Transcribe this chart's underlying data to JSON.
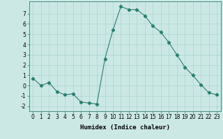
{
  "xlabel": "Humidex (Indice chaleur)",
  "x": [
    0,
    1,
    2,
    3,
    4,
    5,
    6,
    7,
    8,
    9,
    10,
    11,
    12,
    13,
    14,
    15,
    16,
    17,
    18,
    19,
    20,
    21,
    22,
    23
  ],
  "y": [
    0.7,
    0.0,
    0.3,
    -0.6,
    -0.9,
    -0.8,
    -1.6,
    -1.7,
    -1.8,
    2.6,
    5.4,
    7.7,
    7.4,
    7.4,
    6.8,
    5.8,
    5.2,
    4.2,
    3.0,
    1.8,
    1.0,
    0.1,
    -0.7,
    -0.9
  ],
  "line_color": "#2e7d6e",
  "marker": "D",
  "markersize": 2.2,
  "bg_color": "#cce8e5",
  "grid_color": "#aad4d0",
  "ylim": [
    -2.5,
    8.2
  ],
  "xlim": [
    -0.5,
    23.5
  ],
  "yticks": [
    -2,
    -1,
    0,
    1,
    2,
    3,
    4,
    5,
    6,
    7
  ],
  "xticks": [
    0,
    1,
    2,
    3,
    4,
    5,
    6,
    7,
    8,
    9,
    10,
    11,
    12,
    13,
    14,
    15,
    16,
    17,
    18,
    19,
    20,
    21,
    22,
    23
  ],
  "tick_fontsize": 5.5,
  "label_fontsize": 6.5
}
